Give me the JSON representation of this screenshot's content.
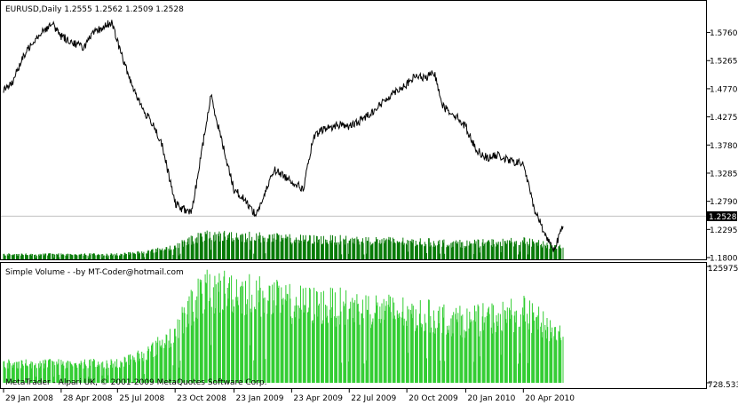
{
  "price_panel": {
    "header": "EURUSD,Daily  1.2555 1.2562 1.2509 1.2528",
    "current_price_label": "1.2528",
    "current_price": 1.2528
  },
  "volume_panel": {
    "header": "Simple Volume - -by MT-Coder@hotmail.com",
    "max_label": "125975.0",
    "min_label": "728.533"
  },
  "footer": {
    "copyright": "MetaTrader - Alpari UK, © 2001-2009 MetaQuotes Software Corp."
  },
  "colors": {
    "price_line": "#000000",
    "volume_dark_green": "#067a06",
    "volume_light_green": "#32cd32",
    "frame": "#000000",
    "current_price_line": "#c0c0c0",
    "price_tag_bg": "#000000",
    "price_tag_text": "#ffffff"
  },
  "chart_data": [
    {
      "type": "line",
      "title": "EURUSD,Daily",
      "x_tick_labels": [
        "29 Jan 2008",
        "28 Apr 2008",
        "25 Jul 2008",
        "23 Oct 2008",
        "23 Jan 2009",
        "23 Apr 2009",
        "22 Jul 2009",
        "20 Oct 2009",
        "20 Jan 2010",
        "20 Apr 2010"
      ],
      "y_tick_labels": [
        "1.5760",
        "1.5265",
        "1.4770",
        "1.4275",
        "1.3780",
        "1.3285",
        "1.2790",
        "1.2295",
        "1.1800"
      ],
      "ylim": [
        1.18,
        1.605
      ],
      "series": [
        {
          "x": [
            "29 Jan 2008",
            "12 Feb 2008",
            "28 Feb 2008",
            "14 Mar 2008",
            "31 Mar 2008",
            "15 Apr 2008",
            "28 Apr 2008",
            "13 May 2008",
            "2 Jun 2008",
            "18 Jun 2008",
            "3 Jul 2008",
            "15 Jul 2008",
            "25 Jul 2008",
            "8 Aug 2008",
            "22 Aug 2008",
            "5 Sep 2008",
            "19 Sep 2008",
            "3 Oct 2008",
            "23 Oct 2008",
            "4 Nov 2008",
            "18 Nov 2008",
            "4 Dec 2008",
            "18 Dec 2008",
            "5 Jan 2009",
            "23 Jan 2009",
            "10 Feb 2009",
            "26 Feb 2009",
            "12 Mar 2009",
            "26 Mar 2009",
            "9 Apr 2009",
            "23 Apr 2009",
            "11 May 2009",
            "27 May 2009",
            "10 Jun 2009",
            "26 Jun 2009",
            "10 Jul 2009",
            "22 Jul 2009",
            "7 Aug 2009",
            "25 Aug 2009",
            "10 Sep 2009",
            "28 Sep 2009",
            "20 Oct 2009",
            "3 Nov 2009",
            "17 Nov 2009",
            "2 Dec 2009",
            "16 Dec 2009",
            "4 Jan 2010",
            "20 Jan 2010",
            "5 Feb 2010",
            "23 Feb 2010",
            "11 Mar 2010",
            "29 Mar 2010",
            "20 Apr 2010",
            "6 May 2010",
            "24 May 2010",
            "7 Jun 2010",
            "21 Jun 2010"
          ],
          "values": [
            1.475,
            1.49,
            1.53,
            1.56,
            1.58,
            1.59,
            1.57,
            1.56,
            1.55,
            1.575,
            1.585,
            1.595,
            1.56,
            1.51,
            1.47,
            1.435,
            1.415,
            1.375,
            1.275,
            1.265,
            1.26,
            1.37,
            1.465,
            1.38,
            1.3,
            1.28,
            1.255,
            1.29,
            1.335,
            1.325,
            1.315,
            1.3,
            1.39,
            1.405,
            1.41,
            1.415,
            1.41,
            1.42,
            1.435,
            1.45,
            1.47,
            1.485,
            1.5,
            1.495,
            1.505,
            1.445,
            1.43,
            1.41,
            1.37,
            1.355,
            1.36,
            1.35,
            1.345,
            1.27,
            1.22,
            1.195,
            1.235
          ]
        }
      ]
    },
    {
      "type": "bar",
      "title": "Simple Volume - -by MT-Coder@hotmail.com",
      "ylim": [
        728.533,
        125975.0
      ],
      "x_tick_labels": [
        "29 Jan 2008",
        "28 Apr 2008",
        "25 Jul 2008",
        "23 Oct 2008",
        "23 Jan 2009",
        "23 Apr 2009",
        "22 Jul 2009",
        "20 Oct 2009",
        "20 Jan 2010",
        "20 Apr 2010"
      ],
      "series": [
        {
          "x": [
            "29 Jan 2008",
            "28 Apr 2008",
            "25 Jul 2008",
            "15 Sep 2008",
            "23 Oct 2008",
            "1 Dec 2008",
            "23 Jan 2009",
            "23 Apr 2009",
            "22 Jul 2009",
            "20 Oct 2009",
            "20 Jan 2010",
            "20 Apr 2010",
            "21 Jun 2010"
          ],
          "values": [
            22000,
            22000,
            22000,
            36000,
            56000,
            100000,
            103000,
            88000,
            84000,
            78000,
            68000,
            78000,
            52000
          ]
        }
      ]
    }
  ]
}
